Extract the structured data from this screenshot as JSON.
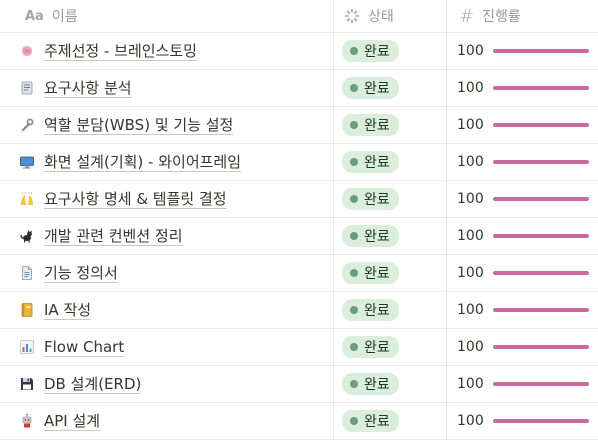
{
  "header": {
    "name_label": "이름",
    "name_icon": "Aa",
    "status_label": "상태",
    "progress_label": "진행률",
    "progress_icon": "#"
  },
  "colors": {
    "badge_bg": "#dbeddb",
    "badge_dot": "#6c9b7d",
    "bar_fill": "#c9699d"
  },
  "rows": [
    {
      "icon": "brain-icon",
      "name": "주제선정 - 브레인스토밍",
      "status": "완료",
      "progress": 100
    },
    {
      "icon": "notepad-icon",
      "name": "요구사항 분석",
      "status": "완료",
      "progress": 100
    },
    {
      "icon": "wrench-icon",
      "name": "역할 분담(WBS) 및 기능 설정",
      "status": "완료",
      "progress": 100
    },
    {
      "icon": "computer-icon",
      "name": "화면 설계(기획) - 와이어프레임",
      "status": "완료",
      "progress": 100
    },
    {
      "icon": "raised-hands-icon",
      "name": "요구사항 명세 & 템플릿 결정",
      "status": "완료",
      "progress": 100
    },
    {
      "icon": "black-cat-icon",
      "name": "개발 관련 컨벤션 정리",
      "status": "완료",
      "progress": 100
    },
    {
      "icon": "document-icon",
      "name": "기능 정의서",
      "status": "완료",
      "progress": 100
    },
    {
      "icon": "ledger-icon",
      "name": "IA 작성",
      "status": "완료",
      "progress": 100
    },
    {
      "icon": "bar-chart-icon",
      "name": "Flow Chart",
      "status": "완료",
      "progress": 100
    },
    {
      "icon": "floppy-disk-icon",
      "name": "DB 설계(ERD)",
      "status": "완료",
      "progress": 100
    },
    {
      "icon": "robot-icon",
      "name": "API 설계",
      "status": "완료",
      "progress": 100
    }
  ]
}
